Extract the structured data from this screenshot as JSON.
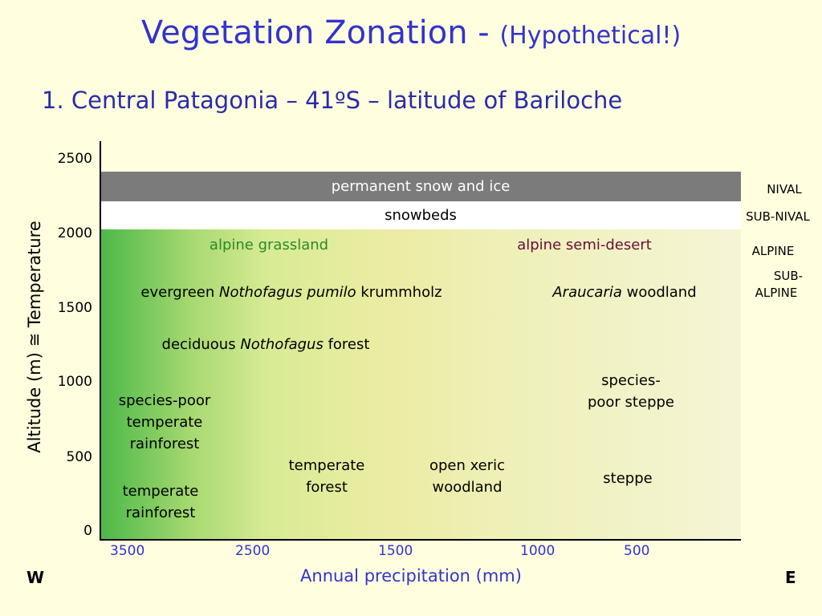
{
  "title": {
    "main": "Vegetation Zonation - ",
    "sub": "(Hypothetical!)"
  },
  "subtitle": "1.  Central Patagonia – 41ºS – latitude of Bariloche",
  "y_axis": {
    "label": "Altitude (m) ≅ Temperature",
    "ticks": [
      "2500",
      "2000",
      "1500",
      "1000",
      "500",
      "0"
    ]
  },
  "x_axis": {
    "label": "Annual precipitation (mm)",
    "ticks": [
      "3500",
      "2500",
      "1500",
      "1000",
      "500"
    ],
    "west": "W",
    "east": "E"
  },
  "bands": {
    "snow_ice": "permanent snow and ice",
    "snowbeds": "snowbeds"
  },
  "zones_right": {
    "nival": "NIVAL",
    "sub_nival": "SUB-NIVAL",
    "alpine": "ALPINE",
    "sub_alpine_1": "SUB-",
    "sub_alpine_2": "ALPINE"
  },
  "labels": {
    "alpine_grassland": "alpine grassland",
    "alpine_semi_desert": "alpine semi-desert",
    "krumm_pre": "evergreen ",
    "krumm_italic": "Nothofagus pumilo",
    "krumm_post": " krummholz",
    "araucaria_italic": "Araucaria",
    "araucaria_post": " woodland",
    "decid_pre": "deciduous ",
    "decid_italic": "Nothofagus",
    "decid_post": " forest",
    "sp_steppe_1": "species-",
    "sp_steppe_2": "poor steppe",
    "sp_rain_1": "species-poor",
    "sp_rain_2": "temperate",
    "sp_rain_3": "rainforest",
    "temp_forest_1": "temperate",
    "temp_forest_2": "forest",
    "xeric_1": "open xeric",
    "xeric_2": "woodland",
    "steppe": "steppe",
    "temp_rain_1": "temperate",
    "temp_rain_2": "rainforest"
  },
  "colors": {
    "title": "#3333cc",
    "background": "#ffffe0",
    "snow_ice": "#7b7b7b",
    "alpine_grassland": "#2a8a2a",
    "alpine_semi_desert": "#6a0d3a",
    "gradient_wet": "#4cb848",
    "gradient_dry": "#f5f5d6"
  }
}
